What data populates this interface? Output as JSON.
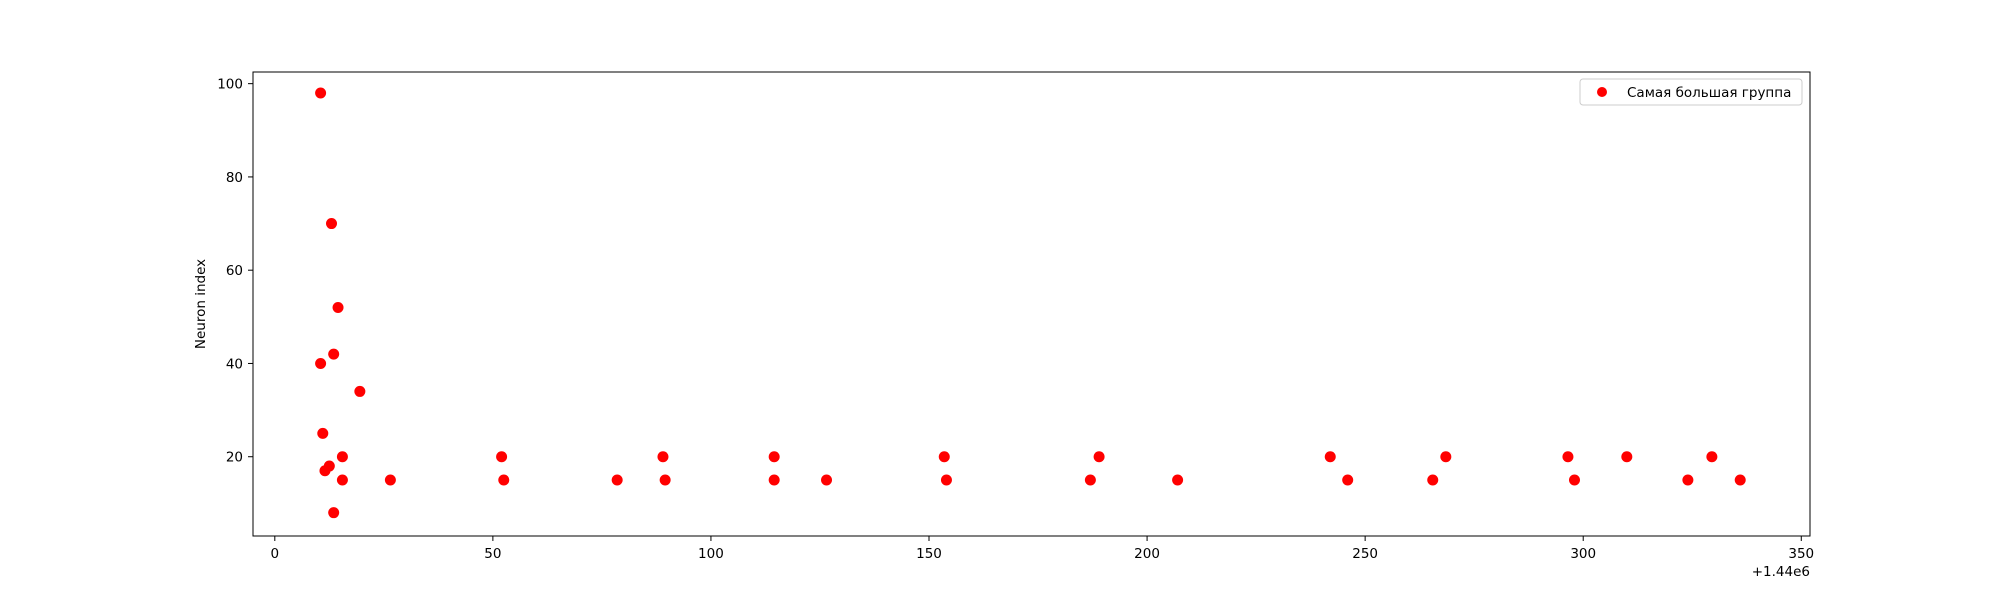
{
  "chart_data": {
    "type": "scatter",
    "title": "",
    "xlabel": "",
    "ylabel": "Neuron index",
    "x_offset_label": "+1.44e6",
    "xlim": [
      -5,
      352
    ],
    "ylim": [
      3,
      102.5
    ],
    "xticks": [
      0,
      50,
      100,
      150,
      200,
      250,
      300,
      350
    ],
    "yticks": [
      20,
      40,
      60,
      80,
      100
    ],
    "grid": false,
    "legend_position": "top-right",
    "series": [
      {
        "name": "Самая большая группа",
        "color": "#ff0000",
        "points": [
          {
            "x": 10.5,
            "y": 98
          },
          {
            "x": 13,
            "y": 70
          },
          {
            "x": 14.5,
            "y": 52
          },
          {
            "x": 13.5,
            "y": 42
          },
          {
            "x": 10.5,
            "y": 40
          },
          {
            "x": 19.5,
            "y": 34
          },
          {
            "x": 11,
            "y": 25
          },
          {
            "x": 15.5,
            "y": 20
          },
          {
            "x": 12.5,
            "y": 18
          },
          {
            "x": 11.5,
            "y": 17
          },
          {
            "x": 15.5,
            "y": 15
          },
          {
            "x": 13.5,
            "y": 8
          },
          {
            "x": 26.5,
            "y": 15
          },
          {
            "x": 52,
            "y": 20
          },
          {
            "x": 52.5,
            "y": 15
          },
          {
            "x": 78.5,
            "y": 15
          },
          {
            "x": 89,
            "y": 20
          },
          {
            "x": 89.5,
            "y": 15
          },
          {
            "x": 114.5,
            "y": 20
          },
          {
            "x": 114.5,
            "y": 15
          },
          {
            "x": 126.5,
            "y": 15
          },
          {
            "x": 153.5,
            "y": 20
          },
          {
            "x": 154,
            "y": 15
          },
          {
            "x": 187,
            "y": 15
          },
          {
            "x": 189,
            "y": 20
          },
          {
            "x": 207,
            "y": 15
          },
          {
            "x": 242,
            "y": 20
          },
          {
            "x": 246,
            "y": 15
          },
          {
            "x": 265.5,
            "y": 15
          },
          {
            "x": 268.5,
            "y": 20
          },
          {
            "x": 296.5,
            "y": 20
          },
          {
            "x": 298,
            "y": 15
          },
          {
            "x": 310,
            "y": 20
          },
          {
            "x": 324,
            "y": 15
          },
          {
            "x": 329.5,
            "y": 20
          },
          {
            "x": 336,
            "y": 15
          }
        ]
      }
    ]
  }
}
